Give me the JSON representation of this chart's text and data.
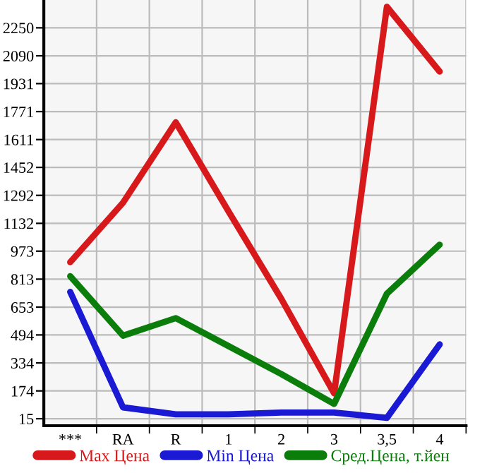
{
  "chart_data": {
    "type": "line",
    "categories": [
      "***",
      "RA",
      "R",
      "1",
      "2",
      "3",
      "3,5",
      "4"
    ],
    "series": [
      {
        "name": "Max Цена",
        "color": "#d7191c",
        "values": [
          910,
          1250,
          1710,
          1200,
          700,
          160,
          2370,
          2000
        ]
      },
      {
        "name": "Min Цена",
        "color": "#1a1ad4",
        "values": [
          740,
          80,
          40,
          40,
          50,
          50,
          20,
          440
        ]
      },
      {
        "name": "Сред.Цена, т.йен",
        "color": "#0a7d0a",
        "values": [
          830,
          490,
          590,
          430,
          270,
          100,
          730,
          1010
        ]
      }
    ],
    "ylim": [
      -25,
      2409
    ],
    "yticks": [
      15,
      174,
      334,
      494,
      653,
      813,
      973,
      1132,
      1292,
      1452,
      1611,
      1771,
      1931,
      2090,
      2250
    ],
    "grid": true,
    "legend": "bottom",
    "marker": "none",
    "line_style": "solid"
  }
}
